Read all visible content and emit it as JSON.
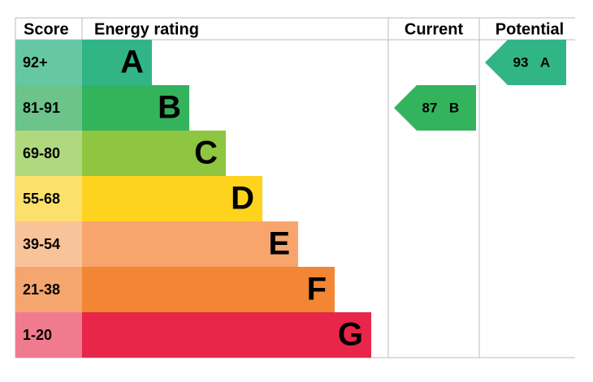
{
  "header": {
    "score": "Score",
    "rating": "Energy rating",
    "current": "Current",
    "potential": "Potential"
  },
  "bands": [
    {
      "score": "92+",
      "letter": "A",
      "color": "#31b587",
      "score_color": "#66c7a4"
    },
    {
      "score": "81-91",
      "letter": "B",
      "color": "#33b35c",
      "score_color": "#6cc48b"
    },
    {
      "score": "69-80",
      "letter": "C",
      "color": "#8ec641",
      "score_color": "#b0d87f"
    },
    {
      "score": "55-68",
      "letter": "D",
      "color": "#fdd31e",
      "score_color": "#fbe16c"
    },
    {
      "score": "39-54",
      "letter": "E",
      "color": "#f7a46d",
      "score_color": "#f9c39a"
    },
    {
      "score": "21-38",
      "letter": "F",
      "color": "#f28634",
      "score_color": "#f5a66e"
    },
    {
      "score": "1-20",
      "letter": "G",
      "color": "#e8264a",
      "score_color": "#f07b8f"
    }
  ],
  "current": {
    "score": 87,
    "rating": "B"
  },
  "potential": {
    "score": 93,
    "rating": "A"
  }
}
